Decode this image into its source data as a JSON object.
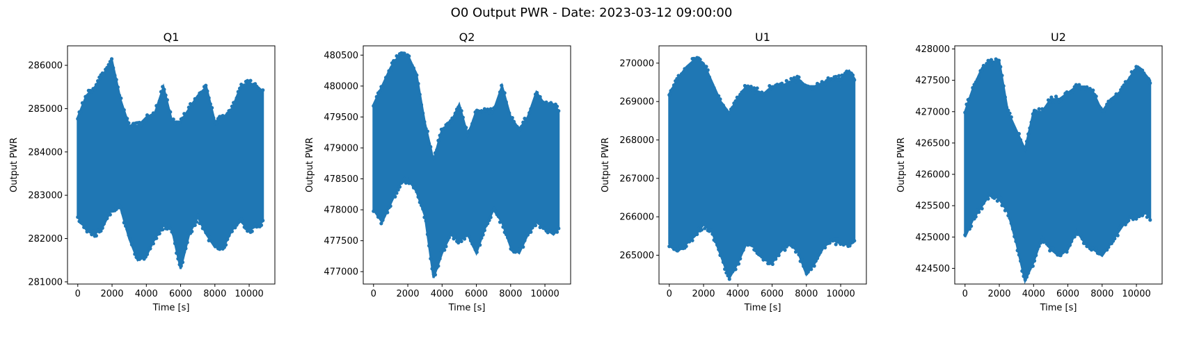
{
  "figure": {
    "title": "O0 Output PWR - Date: 2023-03-12 09:00:00",
    "marker_color": "#1f77b4"
  },
  "chart_data": [
    {
      "type": "scatter",
      "title": "Q1",
      "xlabel": "Time [s]",
      "ylabel": "Output PWR",
      "xlim": [
        -600,
        11500
      ],
      "ylim": [
        280950,
        286450
      ],
      "xticks": [
        0,
        2000,
        4000,
        6000,
        8000,
        10000
      ],
      "yticks": [
        281000,
        282000,
        283000,
        284000,
        285000,
        286000
      ],
      "x": [
        0,
        500,
        1000,
        1500,
        2000,
        2500,
        3000,
        3500,
        4000,
        4500,
        5000,
        5500,
        6000,
        6500,
        7000,
        7500,
        8000,
        8500,
        9000,
        9500,
        10000,
        10500,
        10800
      ],
      "upper": [
        284800,
        285300,
        285500,
        285800,
        286100,
        285200,
        284600,
        284600,
        284800,
        284900,
        285500,
        284700,
        284700,
        285000,
        285300,
        285500,
        284700,
        284800,
        285000,
        285500,
        285600,
        285500,
        285400
      ],
      "lower": [
        282500,
        282200,
        282100,
        282300,
        282700,
        282700,
        282000,
        281500,
        281600,
        282000,
        282300,
        282200,
        281300,
        282100,
        282500,
        282100,
        281800,
        281800,
        282200,
        282400,
        282200,
        282300,
        282400
      ],
      "grid": false
    },
    {
      "type": "scatter",
      "title": "Q2",
      "xlabel": "Time [s]",
      "ylabel": "Output PWR",
      "xlim": [
        -600,
        11500
      ],
      "ylim": [
        476800,
        480650
      ],
      "xticks": [
        0,
        2000,
        4000,
        6000,
        8000,
        10000
      ],
      "yticks": [
        477000,
        477500,
        478000,
        478500,
        479000,
        479500,
        480000,
        480500
      ],
      "x": [
        0,
        500,
        1000,
        1500,
        2000,
        2500,
        3000,
        3500,
        4000,
        4500,
        5000,
        5500,
        6000,
        6500,
        7000,
        7500,
        8000,
        8500,
        9000,
        9500,
        10000,
        10500,
        10800
      ],
      "upper": [
        479700,
        480000,
        480300,
        480500,
        480500,
        480200,
        479400,
        478800,
        479300,
        479400,
        479700,
        479200,
        479600,
        479600,
        479600,
        480000,
        479500,
        479300,
        479500,
        479900,
        479700,
        479700,
        479600
      ],
      "lower": [
        478000,
        477800,
        478100,
        478400,
        478500,
        478300,
        477900,
        476900,
        477300,
        477600,
        477500,
        477600,
        477300,
        477700,
        478000,
        477800,
        477400,
        477300,
        477600,
        477800,
        477700,
        477600,
        477700
      ],
      "grid": false
    },
    {
      "type": "scatter",
      "title": "U1",
      "xlabel": "Time [s]",
      "ylabel": "Output PWR",
      "xlim": [
        -600,
        11500
      ],
      "ylim": [
        264250,
        270450
      ],
      "xticks": [
        0,
        2000,
        4000,
        6000,
        8000,
        10000
      ],
      "yticks": [
        265000,
        266000,
        267000,
        268000,
        269000,
        270000
      ],
      "x": [
        0,
        500,
        1000,
        1500,
        2000,
        2500,
        3000,
        3500,
        4000,
        4500,
        5000,
        5500,
        6000,
        6500,
        7000,
        7500,
        8000,
        8500,
        9000,
        9500,
        10000,
        10500,
        10800
      ],
      "upper": [
        269200,
        269600,
        269900,
        270100,
        270000,
        269500,
        269000,
        268700,
        269100,
        269400,
        269300,
        269200,
        269400,
        269400,
        269500,
        269600,
        269400,
        269400,
        269500,
        269600,
        269600,
        269800,
        269600
      ],
      "lower": [
        265300,
        265100,
        265300,
        265500,
        265800,
        265600,
        265000,
        264400,
        264800,
        265300,
        265200,
        264900,
        264800,
        265100,
        265300,
        265100,
        264500,
        264800,
        265200,
        265400,
        265300,
        265300,
        265400
      ],
      "grid": false
    },
    {
      "type": "scatter",
      "title": "U2",
      "xlabel": "Time [s]",
      "ylabel": "Output PWR",
      "xlim": [
        -600,
        11500
      ],
      "ylim": [
        424250,
        428050
      ],
      "xticks": [
        0,
        2000,
        4000,
        6000,
        8000,
        10000
      ],
      "yticks": [
        424500,
        425000,
        425500,
        426000,
        426500,
        427000,
        427500,
        428000
      ],
      "x": [
        0,
        500,
        1000,
        1500,
        2000,
        2500,
        3000,
        3500,
        4000,
        4500,
        5000,
        5500,
        6000,
        6500,
        7000,
        7500,
        8000,
        8500,
        9000,
        9500,
        10000,
        10500,
        10800
      ],
      "upper": [
        427000,
        427400,
        427700,
        427800,
        427800,
        427000,
        426700,
        426400,
        427000,
        427000,
        427200,
        427200,
        427300,
        427400,
        427400,
        427300,
        427000,
        427200,
        427300,
        427500,
        427700,
        427600,
        427500
      ],
      "lower": [
        425000,
        425300,
        425500,
        425700,
        425600,
        425400,
        424900,
        424300,
        424600,
        425000,
        424800,
        424700,
        424800,
        425100,
        424900,
        424800,
        424700,
        424900,
        425100,
        425300,
        425300,
        425400,
        425300
      ],
      "grid": false
    }
  ]
}
